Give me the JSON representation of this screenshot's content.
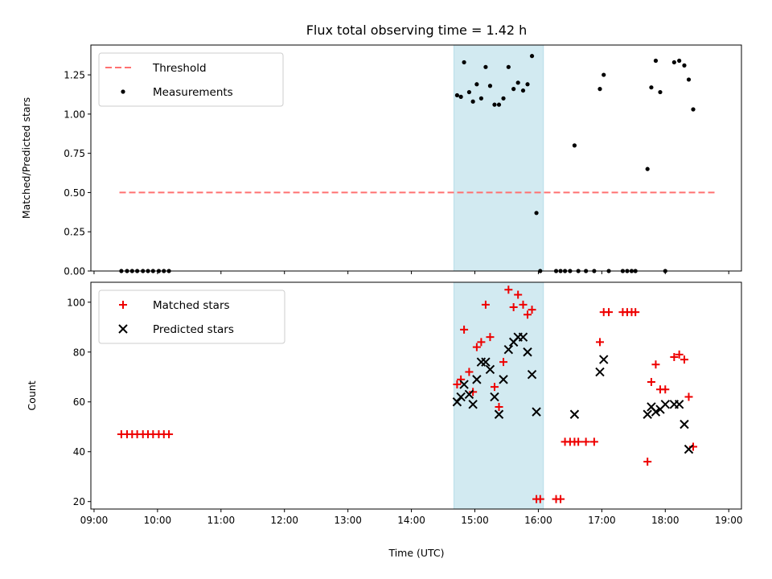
{
  "chart_data": {
    "title": "Flux total observing time = 1.42 h",
    "xlabel": "Time (UTC)",
    "xlim": [
      8.95,
      19.2
    ],
    "x_ticks": [
      9,
      10,
      11,
      12,
      13,
      14,
      15,
      16,
      17,
      18,
      19
    ],
    "x_tick_labels": [
      "09:00",
      "10:00",
      "11:00",
      "12:00",
      "13:00",
      "14:00",
      "15:00",
      "16:00",
      "17:00",
      "18:00",
      "19:00"
    ],
    "shaded_region": {
      "x": [
        14.67,
        16.08
      ],
      "color": "#add8e6"
    },
    "panels": [
      {
        "type": "scatter",
        "ylabel": "Matched/Predicted stars",
        "ylim": [
          0,
          1.44
        ],
        "y_ticks": [
          0,
          0.25,
          0.5,
          0.75,
          1.0,
          1.25
        ],
        "y_tick_labels": [
          "0.00",
          "0.25",
          "0.50",
          "0.75",
          "1.00",
          "1.25"
        ],
        "legend": [
          "Threshold",
          "Measurements"
        ],
        "threshold": {
          "name": "Threshold",
          "y": 0.5,
          "x": [
            9.4,
            18.78
          ],
          "color": "#ff7070"
        },
        "series": [
          {
            "name": "Measurements",
            "color": "#000000",
            "points": [
              [
                9.43,
                0
              ],
              [
                9.52,
                0
              ],
              [
                9.6,
                0
              ],
              [
                9.68,
                0
              ],
              [
                9.77,
                0
              ],
              [
                9.85,
                0
              ],
              [
                9.93,
                0
              ],
              [
                10.02,
                0
              ],
              [
                10.1,
                0
              ],
              [
                10.18,
                0
              ],
              [
                14.72,
                1.12
              ],
              [
                14.78,
                1.11
              ],
              [
                14.83,
                1.33
              ],
              [
                14.91,
                1.14
              ],
              [
                14.97,
                1.08
              ],
              [
                15.03,
                1.19
              ],
              [
                15.1,
                1.1
              ],
              [
                15.17,
                1.3
              ],
              [
                15.24,
                1.18
              ],
              [
                15.31,
                1.06
              ],
              [
                15.38,
                1.06
              ],
              [
                15.45,
                1.1
              ],
              [
                15.53,
                1.3
              ],
              [
                15.61,
                1.16
              ],
              [
                15.68,
                1.2
              ],
              [
                15.76,
                1.15
              ],
              [
                15.83,
                1.19
              ],
              [
                15.9,
                1.37
              ],
              [
                15.97,
                0.37
              ],
              [
                16.03,
                0
              ],
              [
                16.28,
                0
              ],
              [
                16.35,
                0
              ],
              [
                16.42,
                0
              ],
              [
                16.5,
                0
              ],
              [
                16.57,
                0.8
              ],
              [
                16.63,
                0
              ],
              [
                16.75,
                0
              ],
              [
                16.88,
                0
              ],
              [
                16.97,
                1.16
              ],
              [
                17.03,
                1.25
              ],
              [
                17.11,
                0
              ],
              [
                17.33,
                0
              ],
              [
                17.4,
                0
              ],
              [
                17.47,
                0
              ],
              [
                17.53,
                0
              ],
              [
                17.72,
                0.65
              ],
              [
                17.78,
                1.17
              ],
              [
                17.85,
                1.34
              ],
              [
                17.92,
                1.14
              ],
              [
                18.0,
                0
              ],
              [
                18.14,
                1.33
              ],
              [
                18.22,
                1.34
              ],
              [
                18.3,
                1.31
              ],
              [
                18.37,
                1.22
              ],
              [
                18.44,
                1.03
              ]
            ]
          }
        ]
      },
      {
        "type": "scatter",
        "ylabel": "Count",
        "ylim": [
          17,
          108
        ],
        "y_ticks": [
          20,
          40,
          60,
          80,
          100
        ],
        "y_tick_labels": [
          "20",
          "40",
          "60",
          "80",
          "100"
        ],
        "legend": [
          "Matched stars",
          "Predicted stars"
        ],
        "series": [
          {
            "name": "Matched stars",
            "marker": "plus",
            "color": "#ee0000",
            "points": [
              [
                9.43,
                47
              ],
              [
                9.52,
                47
              ],
              [
                9.6,
                47
              ],
              [
                9.68,
                47
              ],
              [
                9.77,
                47
              ],
              [
                9.85,
                47
              ],
              [
                9.93,
                47
              ],
              [
                10.02,
                47
              ],
              [
                10.1,
                47
              ],
              [
                10.18,
                47
              ],
              [
                14.72,
                67
              ],
              [
                14.78,
                69
              ],
              [
                14.83,
                89
              ],
              [
                14.91,
                72
              ],
              [
                14.97,
                64
              ],
              [
                15.03,
                82
              ],
              [
                15.1,
                84
              ],
              [
                15.17,
                99
              ],
              [
                15.24,
                86
              ],
              [
                15.31,
                66
              ],
              [
                15.38,
                58
              ],
              [
                15.45,
                76
              ],
              [
                15.53,
                105
              ],
              [
                15.61,
                98
              ],
              [
                15.68,
                103
              ],
              [
                15.76,
                99
              ],
              [
                15.83,
                95
              ],
              [
                15.9,
                97
              ],
              [
                15.97,
                21
              ],
              [
                16.03,
                21
              ],
              [
                16.28,
                21
              ],
              [
                16.35,
                21
              ],
              [
                16.42,
                44
              ],
              [
                16.5,
                44
              ],
              [
                16.57,
                44
              ],
              [
                16.63,
                44
              ],
              [
                16.75,
                44
              ],
              [
                16.88,
                44
              ],
              [
                16.97,
                84
              ],
              [
                17.03,
                96
              ],
              [
                17.11,
                96
              ],
              [
                17.33,
                96
              ],
              [
                17.4,
                96
              ],
              [
                17.47,
                96
              ],
              [
                17.53,
                96
              ],
              [
                17.72,
                36
              ],
              [
                17.78,
                68
              ],
              [
                17.85,
                75
              ],
              [
                17.92,
                65
              ],
              [
                18.0,
                65
              ],
              [
                18.14,
                78
              ],
              [
                18.22,
                79
              ],
              [
                18.3,
                77
              ],
              [
                18.37,
                62
              ],
              [
                18.44,
                42
              ]
            ]
          },
          {
            "name": "Predicted stars",
            "marker": "x",
            "color": "#000000",
            "points": [
              [
                14.72,
                60
              ],
              [
                14.78,
                62
              ],
              [
                14.83,
                67
              ],
              [
                14.91,
                63
              ],
              [
                14.97,
                59
              ],
              [
                15.03,
                69
              ],
              [
                15.1,
                76
              ],
              [
                15.17,
                76
              ],
              [
                15.24,
                73
              ],
              [
                15.31,
                62
              ],
              [
                15.38,
                55
              ],
              [
                15.45,
                69
              ],
              [
                15.53,
                81
              ],
              [
                15.61,
                84
              ],
              [
                15.68,
                86
              ],
              [
                15.76,
                86
              ],
              [
                15.83,
                80
              ],
              [
                15.9,
                71
              ],
              [
                15.97,
                56
              ],
              [
                16.57,
                55
              ],
              [
                16.97,
                72
              ],
              [
                17.03,
                77
              ],
              [
                17.72,
                55
              ],
              [
                17.78,
                58
              ],
              [
                17.85,
                56
              ],
              [
                17.92,
                57
              ],
              [
                18.0,
                59
              ],
              [
                18.14,
                59
              ],
              [
                18.22,
                59
              ],
              [
                18.3,
                51
              ],
              [
                18.37,
                41
              ]
            ]
          }
        ]
      }
    ]
  }
}
